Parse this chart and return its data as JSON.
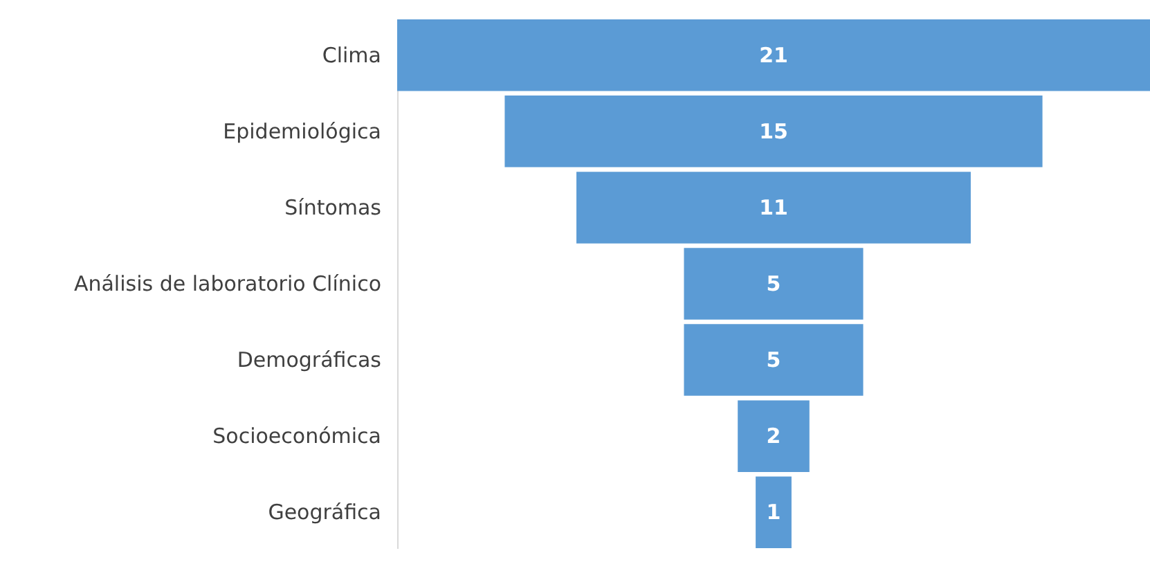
{
  "chart_data": {
    "type": "other",
    "categories": [
      "Clima",
      "Epidemiológica",
      "Síntomas",
      "Análisis de laboratorio Clínico",
      "Demográficas",
      "Socioeconómica",
      "Geográfica"
    ],
    "values": [
      21,
      15,
      11,
      5,
      5,
      2,
      1
    ],
    "color": "#5b9bd5",
    "data_labels": true
  }
}
